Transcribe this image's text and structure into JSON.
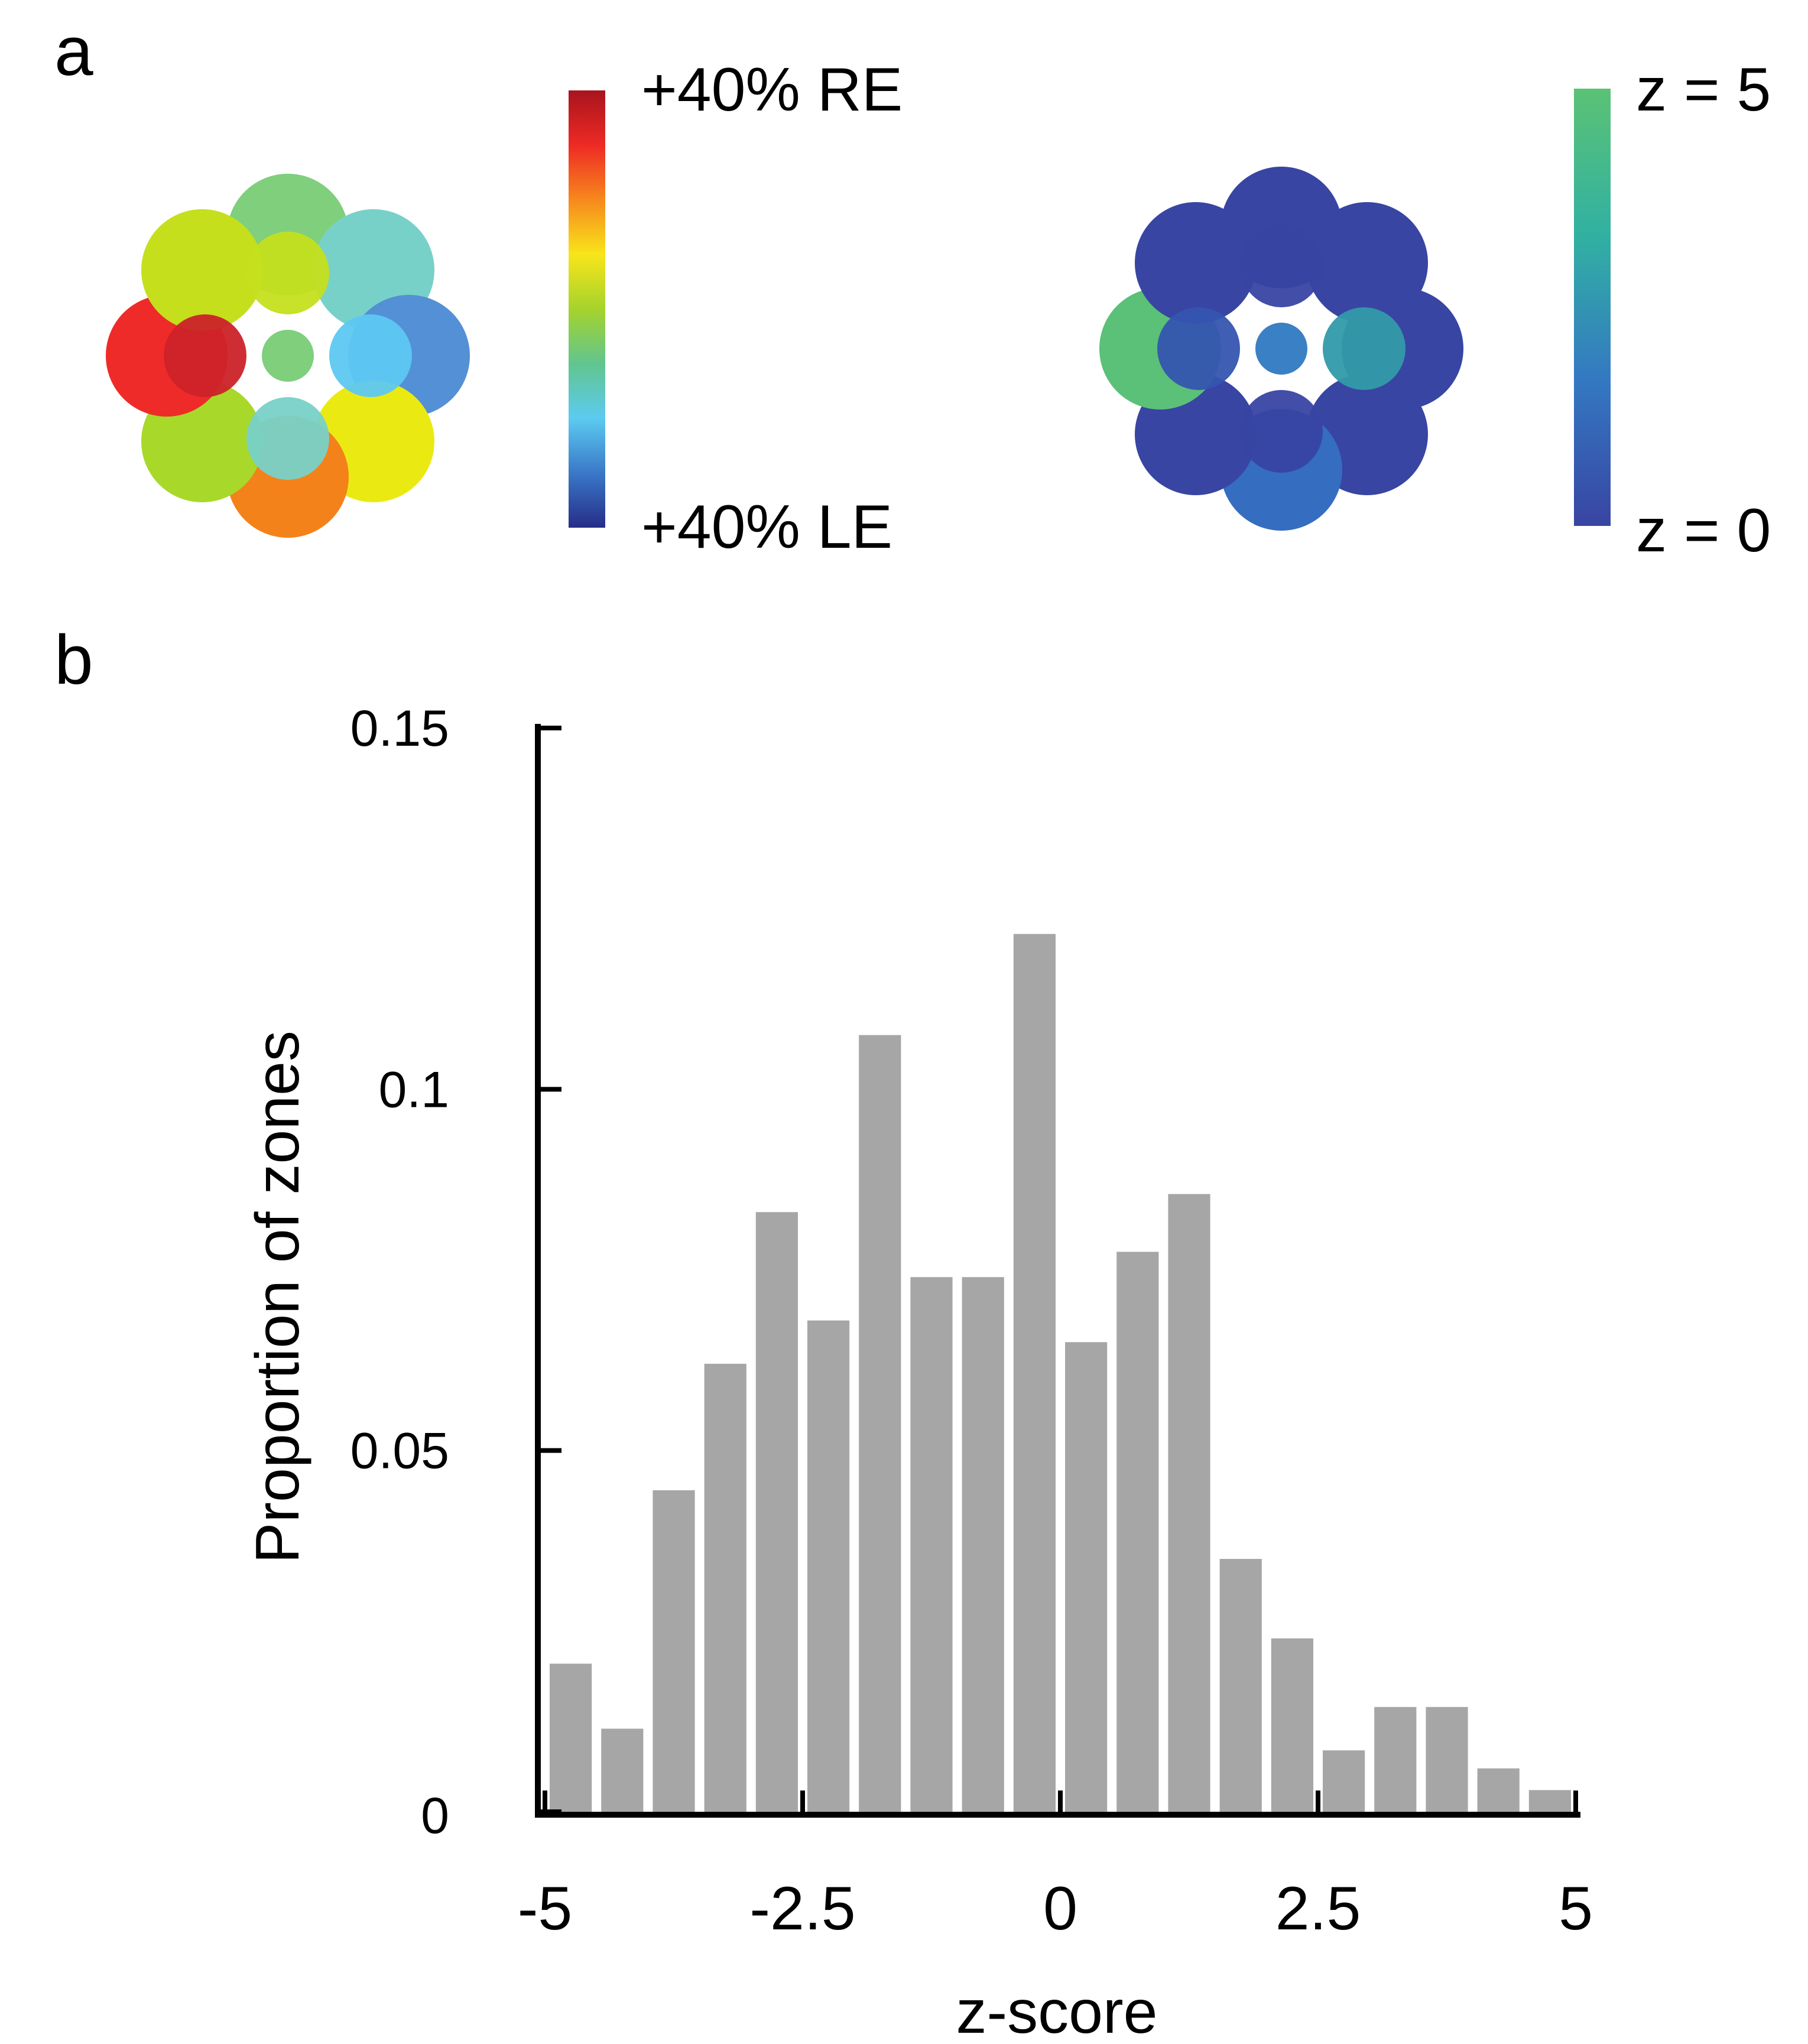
{
  "panel_a": {
    "letter": "a",
    "left_map": {
      "colorbar_top_label": "+40% RE",
      "colorbar_bottom_label": "+40% LE",
      "colorbar_stops": [
        "#a8141e",
        "#ee2a24",
        "#f7881d",
        "#f8e51a",
        "#a5d32c",
        "#61c58f",
        "#5ccbf0",
        "#3a78c8",
        "#262d88"
      ],
      "outer_colors": [
        "#7fcf7d",
        "#78d1c8",
        "#5490d5",
        "#eaea12",
        "#f4821a",
        "#a8d82a",
        "#ee2b28",
        "#c5df1d"
      ],
      "inner_colors": [
        "#c5df1d",
        "#5dc8f2",
        "#78d1c8",
        "#cc2229"
      ],
      "center_color": "#7fcf7d"
    },
    "right_map": {
      "colorbar_top_label": "z = 5",
      "colorbar_bottom_label": "z = 0",
      "colorbar_stops": [
        "#5bc275",
        "#31b1a2",
        "#3478c2",
        "#3845a2"
      ],
      "outer_colors": [
        "#3845a2",
        "#3845a2",
        "#3845a2",
        "#3845a2",
        "#356dc0",
        "#3845a2",
        "#5bc078",
        "#3845a2"
      ],
      "inner_colors": [
        "#3845a2",
        "#319aa9",
        "#3845a2",
        "#3555b0"
      ],
      "center_color": "#3a80c4"
    }
  },
  "panel_b": {
    "letter": "b"
  },
  "chart_data": {
    "type": "bar",
    "x_tick_labels": [
      "-5",
      "-2.5",
      "0",
      "2.5",
      "5"
    ],
    "x_ticks": [
      -5,
      -2.5,
      0,
      2.5,
      5
    ],
    "y_tick_labels": [
      "0",
      "0.05",
      "0.1",
      "0.15"
    ],
    "y_ticks": [
      0,
      0.05,
      0.1,
      0.15
    ],
    "xlabel": "z-score",
    "ylabel": "Proportion of zones",
    "xlim": [
      -5,
      5
    ],
    "ylim": [
      0,
      0.15
    ],
    "bin_width": 0.5,
    "bin_starts": [
      -5,
      -4.5,
      -4,
      -3.5,
      -3,
      -2.5,
      -2,
      -1.5,
      -1,
      -0.5,
      0,
      0.5,
      1,
      1.5,
      2,
      2.5,
      3,
      3.5,
      4,
      4.5
    ],
    "values": [
      0.0205,
      0.0115,
      0.0445,
      0.062,
      0.083,
      0.068,
      0.1075,
      0.074,
      0.074,
      0.1215,
      0.065,
      0.0775,
      0.0855,
      0.035,
      0.024,
      0.0085,
      0.0145,
      0.0145,
      0.006,
      0.003
    ],
    "bar_color": "#a6a6a6",
    "grid": false
  }
}
